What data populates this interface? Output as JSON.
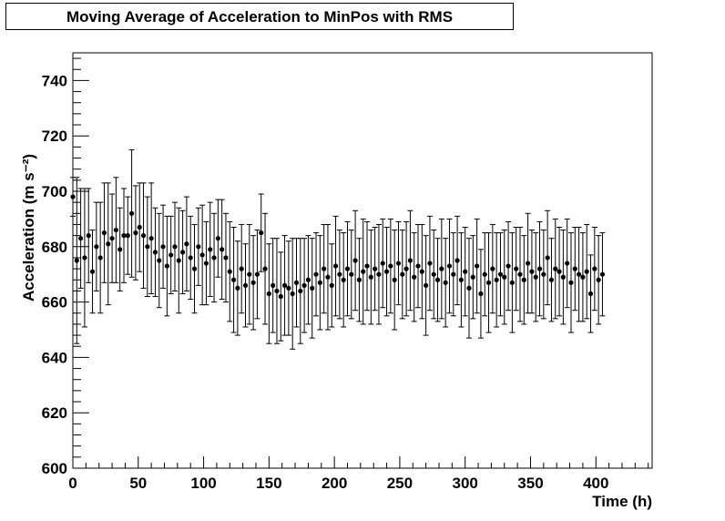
{
  "chart_data": {
    "type": "scatter",
    "title": "Moving Average of Acceleration to MinPos with RMS",
    "xlabel": "Time (h)",
    "ylabel": "Acceleration (m s⁻²)",
    "xlim": [
      0,
      443
    ],
    "ylim": [
      600,
      750
    ],
    "xticks": [
      0,
      50,
      100,
      150,
      200,
      250,
      300,
      350,
      400
    ],
    "yticks": [
      600,
      620,
      640,
      660,
      680,
      700,
      720,
      740
    ],
    "grid": false,
    "x_start": 0,
    "x_step": 3,
    "values": [
      698,
      675,
      683,
      676,
      684,
      671,
      680,
      676,
      685,
      681,
      683,
      686,
      679,
      684,
      684,
      692,
      685,
      687,
      684,
      680,
      683,
      678,
      675,
      680,
      673,
      677,
      680,
      675,
      678,
      681,
      676,
      672,
      680,
      677,
      674,
      679,
      676,
      683,
      679,
      676,
      671,
      668,
      665,
      672,
      666,
      670,
      667,
      670,
      685,
      672,
      663,
      666,
      664,
      662,
      666,
      665,
      663,
      667,
      664,
      666,
      668,
      665,
      670,
      667,
      672,
      669,
      666,
      673,
      670,
      668,
      672,
      670,
      675,
      668,
      671,
      673,
      669,
      672,
      670,
      674,
      671,
      673,
      668,
      674,
      670,
      672,
      675,
      669,
      673,
      671,
      666,
      674,
      670,
      668,
      672,
      667,
      673,
      670,
      675,
      668,
      671,
      665,
      669,
      673,
      663,
      670,
      667,
      672,
      668,
      670,
      669,
      673,
      667,
      672,
      670,
      668,
      674,
      671,
      669,
      672,
      670,
      676,
      668,
      672,
      671,
      669,
      674,
      667,
      672,
      670,
      669,
      671,
      663,
      672,
      668,
      670
    ],
    "rms": [
      7,
      30,
      18,
      25,
      17,
      15,
      16,
      20,
      18,
      22,
      16,
      19,
      15,
      17,
      14,
      23,
      17,
      16,
      19,
      18,
      20,
      16,
      17,
      15,
      18,
      14,
      16,
      19,
      15,
      17,
      15,
      16,
      14,
      18,
      15,
      17,
      16,
      14,
      18,
      16,
      18,
      19,
      17,
      16,
      15,
      18,
      17,
      16,
      14,
      20,
      18,
      17,
      19,
      16,
      18,
      17,
      20,
      16,
      19,
      17,
      16,
      18,
      15,
      17,
      16,
      19,
      15,
      18,
      16,
      17,
      17,
      16,
      18,
      15,
      19,
      16,
      17,
      15,
      18,
      16,
      16,
      17,
      18,
      15,
      16,
      17,
      18,
      16,
      15,
      17,
      18,
      17,
      16,
      15,
      18,
      16,
      17,
      15,
      16,
      17,
      16,
      18,
      15,
      17,
      16,
      15,
      18,
      16,
      17,
      15,
      17,
      16,
      18,
      15,
      17,
      16,
      18,
      15,
      16,
      17,
      16,
      17,
      15,
      18,
      16,
      17,
      16,
      18,
      15,
      17,
      16,
      17,
      14,
      15,
      16,
      15
    ]
  }
}
